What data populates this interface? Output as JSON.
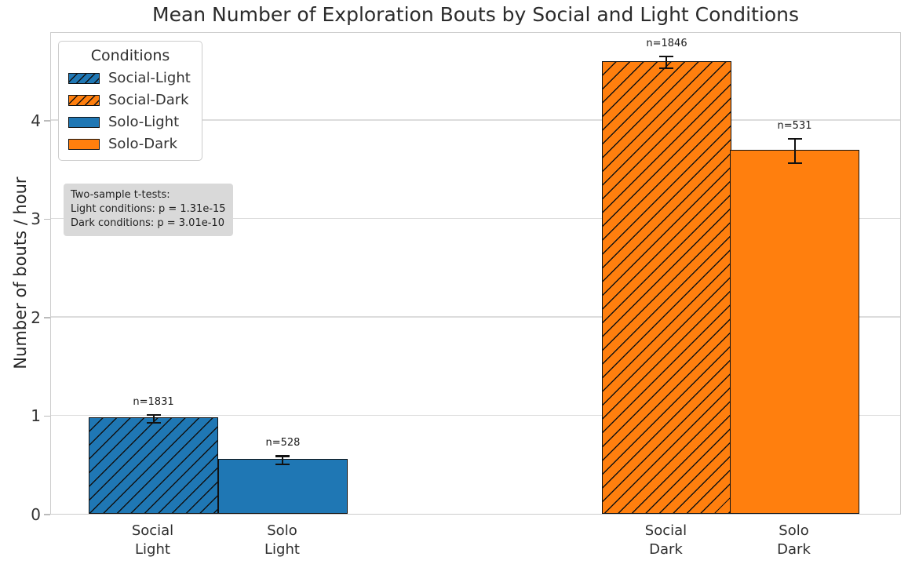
{
  "title": "Mean Number of Exploration Bouts by Social and Light Conditions",
  "y_axis": {
    "label": "Number of bouts / hour",
    "ticks": [
      0,
      1,
      2,
      3,
      4
    ]
  },
  "x_axis": {
    "tick_labels": [
      "Social\nLight",
      "Solo\nLight",
      "Social\nDark",
      "Solo\nDark"
    ]
  },
  "legend": {
    "title": "Conditions",
    "entries": [
      {
        "label": "Social-Light",
        "color": "#1f77b4",
        "hatched": true
      },
      {
        "label": "Social-Dark",
        "color": "#ff7f0e",
        "hatched": true
      },
      {
        "label": "Solo-Light",
        "color": "#1f77b4",
        "hatched": false
      },
      {
        "label": "Solo-Dark",
        "color": "#ff7f0e",
        "hatched": false
      }
    ]
  },
  "annotation": {
    "lines": [
      "Two-sample t-tests:",
      "Light conditions: p = 1.31e-15",
      "Dark conditions: p = 3.01e-10"
    ]
  },
  "chart_data": {
    "type": "bar",
    "title": "Mean Number of Exploration Bouts by Social and Light Conditions",
    "xlabel": "",
    "ylabel": "Number of bouts / hour",
    "categories": [
      "Social\nLight",
      "Solo\nLight",
      "Social\nDark",
      "Solo\nDark"
    ],
    "values": [
      0.98,
      0.56,
      4.6,
      3.7
    ],
    "errors": [
      0.05,
      0.05,
      0.07,
      0.13
    ],
    "yticks": [
      0,
      1,
      2,
      3,
      4
    ],
    "ylim": [
      0,
      4.9
    ],
    "grid": "horizontal",
    "legend_position": "upper-left",
    "bar_width_frac": 0.1522,
    "bars": [
      {
        "category": "Social\nLight",
        "condition": "Social-Light",
        "value": 0.98,
        "error": 0.05,
        "n_label": "n=1831",
        "color": "#1f77b4",
        "hatched": true,
        "x_center_frac": 0.1204
      },
      {
        "category": "Solo\nLight",
        "condition": "Solo-Light",
        "value": 0.56,
        "error": 0.05,
        "n_label": "n=528",
        "color": "#1f77b4",
        "hatched": false,
        "x_center_frac": 0.2726
      },
      {
        "category": "Social\nDark",
        "condition": "Social-Dark",
        "value": 4.6,
        "error": 0.07,
        "n_label": "n=1846",
        "color": "#ff7f0e",
        "hatched": true,
        "x_center_frac": 0.7237
      },
      {
        "category": "Solo\nDark",
        "condition": "Solo-Dark",
        "value": 3.7,
        "error": 0.13,
        "n_label": "n=531",
        "color": "#ff7f0e",
        "hatched": false,
        "x_center_frac": 0.8741
      }
    ]
  }
}
